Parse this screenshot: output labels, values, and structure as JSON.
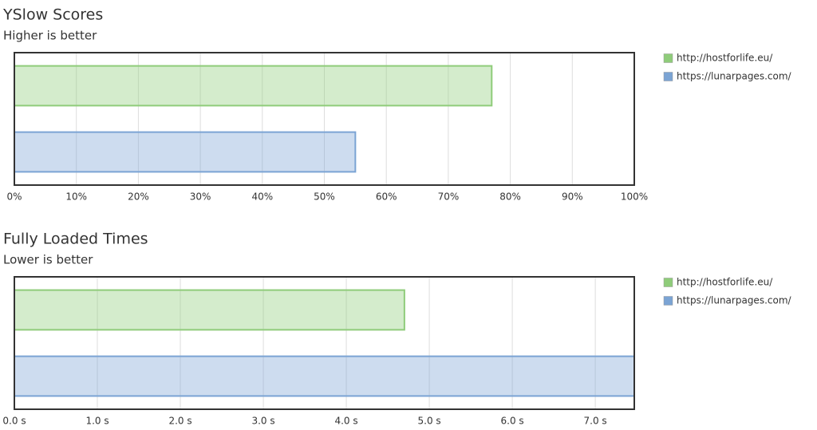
{
  "chart_data": [
    {
      "type": "bar",
      "title": "YSlow Scores",
      "subtitle": "Higher is better",
      "series": [
        {
          "name": "http://hostforlife.eu/",
          "color": "#8fcc7a",
          "values": [
            77
          ]
        },
        {
          "name": "https://lunarpages.com/",
          "color": "#7ba4d4",
          "values": [
            55
          ]
        }
      ],
      "xlim": [
        0,
        100
      ],
      "xticks": [
        {
          "value": 0,
          "label": "0%"
        },
        {
          "value": 10,
          "label": "10%"
        },
        {
          "value": 20,
          "label": "20%"
        },
        {
          "value": 30,
          "label": "30%"
        },
        {
          "value": 40,
          "label": "40%"
        },
        {
          "value": 50,
          "label": "50%"
        },
        {
          "value": 60,
          "label": "60%"
        },
        {
          "value": 70,
          "label": "70%"
        },
        {
          "value": 80,
          "label": "80%"
        },
        {
          "value": 90,
          "label": "90%"
        },
        {
          "value": 100,
          "label": "100%"
        }
      ],
      "grid": true,
      "legend": "right"
    },
    {
      "type": "bar",
      "title": "Fully Loaded Times",
      "subtitle": "Lower is better",
      "series": [
        {
          "name": "http://hostforlife.eu/",
          "color": "#8fcc7a",
          "values": [
            4.7
          ]
        },
        {
          "name": "https://lunarpages.com/",
          "color": "#7ba4d4",
          "values": [
            7.47
          ]
        }
      ],
      "xlim": [
        0,
        7.47
      ],
      "xticks": [
        {
          "value": 0,
          "label": "0.0 s"
        },
        {
          "value": 1,
          "label": "1.0 s"
        },
        {
          "value": 2,
          "label": "2.0 s"
        },
        {
          "value": 3,
          "label": "3.0 s"
        },
        {
          "value": 4,
          "label": "4.0 s"
        },
        {
          "value": 5,
          "label": "5.0 s"
        },
        {
          "value": 6,
          "label": "6.0 s"
        },
        {
          "value": 7,
          "label": "7.0 s"
        }
      ],
      "grid": true,
      "legend": "right"
    }
  ]
}
